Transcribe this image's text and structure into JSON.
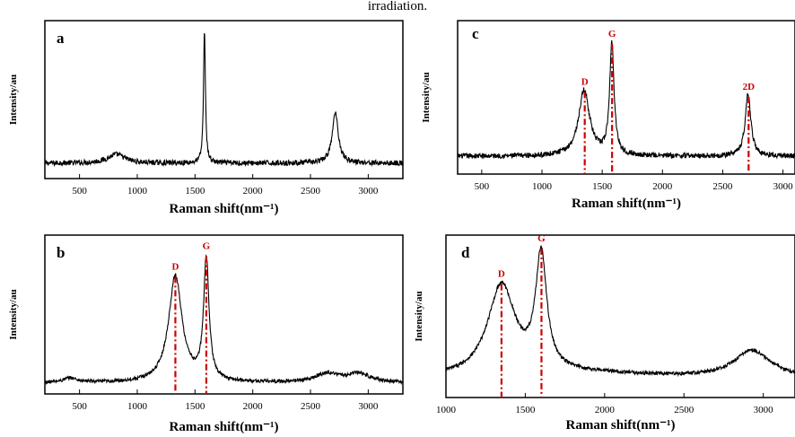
{
  "caption_top": "irradiation.",
  "panels": [
    {
      "label": "a",
      "xlabel": "Raman shift(nm⁻¹)",
      "ylabel": "Intensity/au"
    },
    {
      "label": "c",
      "xlabel": "Raman shift(nm⁻¹)",
      "ylabel": "Intensity/au"
    },
    {
      "label": "b",
      "xlabel": "Raman shift(nm⁻¹)",
      "ylabel": "Intensity/au"
    },
    {
      "label": "d",
      "xlabel": "Raman shift(nm⁻¹)",
      "ylabel": "Intensity/au"
    }
  ],
  "chart_data": [
    {
      "type": "line",
      "panel": "a",
      "xlabel": "Raman shift(nm⁻¹)",
      "ylabel": "Intensity/au",
      "xlim": [
        200,
        3300
      ],
      "xticks": [
        500,
        1000,
        1500,
        2000,
        2500,
        3000
      ],
      "ylim": [
        0,
        1
      ],
      "y_ticks_shown": false,
      "baseline": 0.08,
      "noise": 0.018,
      "series": [
        {
          "color": "#000000",
          "peaks": [
            {
              "center": 820,
              "width": 90,
              "height": 0.06
            },
            {
              "center": 1582,
              "width": 10,
              "height": 0.9
            },
            {
              "center": 2715,
              "width": 32,
              "height": 0.34
            }
          ]
        }
      ],
      "annotations": []
    },
    {
      "type": "line",
      "panel": "c",
      "xlabel": "Raman shift(nm⁻¹)",
      "ylabel": "Intensity/au",
      "xlim": [
        300,
        3100
      ],
      "xticks": [
        500,
        1000,
        1500,
        2000,
        2500,
        3000
      ],
      "ylim": [
        0,
        1
      ],
      "y_ticks_shown": false,
      "baseline": 0.1,
      "noise": 0.018,
      "series": [
        {
          "color": "#000000",
          "peaks": [
            {
              "center": 1350,
              "width": 55,
              "height": 0.46
            },
            {
              "center": 1580,
              "width": 22,
              "height": 0.78
            },
            {
              "center": 2710,
              "width": 28,
              "height": 0.44
            }
          ]
        }
      ],
      "annotations": [
        {
          "text": "D",
          "x": 1355,
          "color": "#cc0000"
        },
        {
          "text": "G",
          "x": 1582,
          "color": "#cc0000"
        },
        {
          "text": "2D",
          "x": 2715,
          "color": "#cc0000"
        }
      ]
    },
    {
      "type": "line",
      "panel": "b",
      "xlabel": "Raman shift(nm⁻¹)",
      "ylabel": "Intensity/au",
      "xlim": [
        200,
        3300
      ],
      "xticks": [
        500,
        1000,
        1500,
        2000,
        2500,
        3000
      ],
      "ylim": [
        0,
        1
      ],
      "y_ticks_shown": false,
      "baseline": 0.05,
      "noise": 0.012,
      "series": [
        {
          "color": "#000000",
          "peaks": [
            {
              "center": 420,
              "width": 70,
              "height": 0.03
            },
            {
              "center": 1330,
              "width": 70,
              "height": 0.72
            },
            {
              "center": 1598,
              "width": 28,
              "height": 0.82
            },
            {
              "center": 2650,
              "width": 130,
              "height": 0.06
            },
            {
              "center": 2920,
              "width": 110,
              "height": 0.06
            }
          ]
        }
      ],
      "annotations": [
        {
          "text": "D",
          "x": 1330,
          "color": "#cc0000"
        },
        {
          "text": "G",
          "x": 1598,
          "color": "#cc0000"
        }
      ]
    },
    {
      "type": "line",
      "panel": "d",
      "xlabel": "Raman shift(nm⁻¹)",
      "ylabel": "Intensity/au",
      "xlim": [
        1000,
        3200
      ],
      "xticks": [
        1000,
        1500,
        2000,
        2500,
        3000
      ],
      "ylim": [
        0,
        1
      ],
      "y_ticks_shown": false,
      "baseline": 0.1,
      "noise": 0.012,
      "series": [
        {
          "color": "#000000",
          "peaks": [
            {
              "center": 1350,
              "width": 105,
              "height": 0.6
            },
            {
              "center": 1600,
              "width": 42,
              "height": 0.76
            },
            {
              "center": 2930,
              "width": 140,
              "height": 0.18
            },
            {
              "center": 1900,
              "width": 500,
              "height": 0.03
            }
          ]
        }
      ],
      "annotations": [
        {
          "text": "D",
          "x": 1350,
          "color": "#cc0000"
        },
        {
          "text": "G",
          "x": 1602,
          "color": "#cc0000"
        }
      ]
    }
  ]
}
